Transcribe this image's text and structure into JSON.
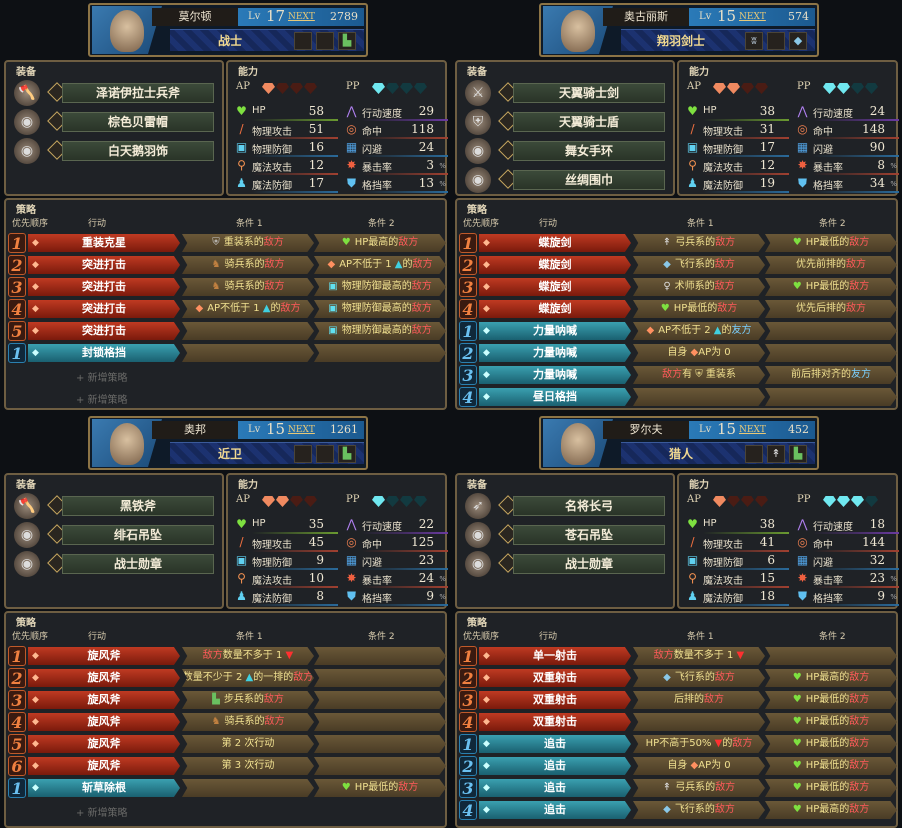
{
  "labels": {
    "equip": "装备",
    "ability": "能力",
    "strategy": "策略",
    "priority": "优先顺序",
    "action": "行动",
    "cond1": "条件 1",
    "cond2": "条件 2",
    "ap": "AP",
    "pp": "PP",
    "lv": "Lv",
    "next": "NEXT",
    "pct": "%"
  },
  "stat_labels": [
    "HP",
    "物理攻击",
    "物理防御",
    "魔法攻击",
    "魔法防御",
    "行动速度",
    "命中",
    "闪避",
    "暴击率",
    "格挡率"
  ],
  "stat_icons": [
    "heart-icon",
    "sword-icon",
    "armor-icon",
    "staff-icon",
    "cloak-icon",
    "speed-icon",
    "target-icon",
    "evade-icon",
    "crit-icon",
    "shield-icon"
  ],
  "colors": {
    "active": "#a82a18",
    "passive": "#2a8a9a",
    "enemy": "#ff5a5a",
    "ally": "#7ad0ff",
    "frame": "#6e5e42"
  },
  "units": [
    {
      "name": "莫尔顿",
      "lv": "17",
      "next": "2789",
      "cls": "战士",
      "class_icons": [
        "",
        "",
        "infantry"
      ],
      "ap_max": 4,
      "ap": 1,
      "pp_max": 4,
      "pp": 1,
      "equip": [
        {
          "name": "泽诺伊拉士兵斧",
          "type": "axe"
        },
        {
          "name": "棕色贝雷帽",
          "type": "accessory"
        },
        {
          "name": "白天鹅羽饰",
          "type": "accessory"
        }
      ],
      "stats": [
        "58",
        "51",
        "16",
        "12",
        "17",
        "29",
        "118",
        "24",
        "3",
        "13"
      ],
      "strategies": [
        {
          "rank": "1",
          "kind": "active",
          "action": "重装克星",
          "c1": {
            "icon": "armor",
            "text": "重装系的敌方"
          },
          "c2": {
            "icon": "hp",
            "text": "HP最高的敌方"
          }
        },
        {
          "rank": "2",
          "kind": "active",
          "action": "突进打击",
          "c1": {
            "icon": "cavalry",
            "text": "骑兵系的敌方"
          },
          "c2": {
            "icon": "ap",
            "text": "AP不低于 1 ▲的敌方"
          }
        },
        {
          "rank": "3",
          "kind": "active",
          "action": "突进打击",
          "c1": {
            "icon": "cavalry",
            "text": "骑兵系的敌方"
          },
          "c2": {
            "icon": "pdef",
            "text": "物理防御最高的敌方"
          }
        },
        {
          "rank": "4",
          "kind": "active",
          "action": "突进打击",
          "c1": {
            "icon": "ap",
            "text": "AP不低于 1 ▲的敌方"
          },
          "c2": {
            "icon": "pdef",
            "text": "物理防御最高的敌方"
          }
        },
        {
          "rank": "5",
          "kind": "active",
          "action": "突进打击",
          "c1": {
            "icon": "",
            "text": ""
          },
          "c2": {
            "icon": "pdef",
            "text": "物理防御最高的敌方"
          }
        },
        {
          "rank": "1",
          "kind": "passive",
          "action": "封锁格挡",
          "c1": {
            "icon": "",
            "text": ""
          },
          "c2": {
            "icon": "",
            "text": ""
          }
        }
      ],
      "add": [
        "+ 新增策略",
        "+ 新增策略"
      ]
    },
    {
      "name": "奥古丽斯",
      "lv": "15",
      "next": "574",
      "cls": "翔羽剑士",
      "class_icons": [
        "wings",
        "",
        "flying"
      ],
      "ap_max": 4,
      "ap": 2,
      "pp_max": 4,
      "pp": 2,
      "equip": [
        {
          "name": "天翼骑士剑",
          "type": "sword"
        },
        {
          "name": "天翼骑士盾",
          "type": "shield"
        },
        {
          "name": "舞女手环",
          "type": "accessory"
        },
        {
          "name": "丝绸围巾",
          "type": "accessory"
        }
      ],
      "stats": [
        "38",
        "31",
        "17",
        "12",
        "19",
        "24",
        "148",
        "90",
        "8",
        "34"
      ],
      "strategies": [
        {
          "rank": "1",
          "kind": "active",
          "action": "蝶旋剑",
          "c1": {
            "icon": "archer",
            "text": "弓兵系的敌方"
          },
          "c2": {
            "icon": "hp",
            "text": "HP最低的敌方"
          }
        },
        {
          "rank": "2",
          "kind": "active",
          "action": "蝶旋剑",
          "c1": {
            "icon": "flying",
            "text": "飞行系的敌方"
          },
          "c2": {
            "icon": "",
            "text": "优先前排的敌方"
          }
        },
        {
          "rank": "3",
          "kind": "active",
          "action": "蝶旋剑",
          "c1": {
            "icon": "mage",
            "text": "术师系的敌方"
          },
          "c2": {
            "icon": "hp",
            "text": "HP最低的敌方"
          }
        },
        {
          "rank": "4",
          "kind": "active",
          "action": "蝶旋剑",
          "c1": {
            "icon": "hp",
            "text": "HP最低的敌方"
          },
          "c2": {
            "icon": "",
            "text": "优先后排的敌方"
          }
        },
        {
          "rank": "1",
          "kind": "passive",
          "action": "力量呐喊",
          "c1": {
            "icon": "ap",
            "text": "AP不低于 2 ▲的友方"
          },
          "c2": {
            "icon": "",
            "text": ""
          }
        },
        {
          "rank": "2",
          "kind": "passive",
          "action": "力量呐喊",
          "c1": {
            "icon": "",
            "text": "自身 ◆AP为 0"
          },
          "c2": {
            "icon": "",
            "text": ""
          }
        },
        {
          "rank": "3",
          "kind": "passive",
          "action": "力量呐喊",
          "c1": {
            "icon": "",
            "text": "敌方有 ⛨ 重装系"
          },
          "c2": {
            "icon": "",
            "text": "前后排对齐的友方"
          }
        },
        {
          "rank": "4",
          "kind": "passive",
          "action": "昼日格挡",
          "c1": {
            "icon": "",
            "text": ""
          },
          "c2": {
            "icon": "",
            "text": ""
          }
        }
      ],
      "add": []
    },
    {
      "name": "奥邦",
      "lv": "15",
      "next": "1261",
      "cls": "近卫",
      "class_icons": [
        "",
        "",
        "infantry"
      ],
      "ap_max": 4,
      "ap": 2,
      "pp_max": 4,
      "pp": 1,
      "equip": [
        {
          "name": "黑铁斧",
          "type": "axe"
        },
        {
          "name": "绯石吊坠",
          "type": "accessory"
        },
        {
          "name": "战士勋章",
          "type": "accessory"
        }
      ],
      "stats": [
        "35",
        "45",
        "9",
        "10",
        "8",
        "22",
        "125",
        "23",
        "24",
        "9"
      ],
      "strategies": [
        {
          "rank": "1",
          "kind": "active",
          "action": "旋风斧",
          "c1": {
            "icon": "",
            "text": "敌方数量不多于 1 ▼"
          },
          "c2": {
            "icon": "",
            "text": ""
          }
        },
        {
          "rank": "2",
          "kind": "active",
          "action": "旋风斧",
          "c1": {
            "icon": "",
            "text": "数量不少于 2 ▲的一排的敌方"
          },
          "c2": {
            "icon": "",
            "text": ""
          }
        },
        {
          "rank": "3",
          "kind": "active",
          "action": "旋风斧",
          "c1": {
            "icon": "infantry",
            "text": "步兵系的敌方"
          },
          "c2": {
            "icon": "",
            "text": ""
          }
        },
        {
          "rank": "4",
          "kind": "active",
          "action": "旋风斧",
          "c1": {
            "icon": "cavalry",
            "text": "骑兵系的敌方"
          },
          "c2": {
            "icon": "",
            "text": ""
          }
        },
        {
          "rank": "5",
          "kind": "active",
          "action": "旋风斧",
          "c1": {
            "icon": "",
            "text": "第 2 次行动"
          },
          "c2": {
            "icon": "",
            "text": ""
          }
        },
        {
          "rank": "6",
          "kind": "active",
          "action": "旋风斧",
          "c1": {
            "icon": "",
            "text": "第 3 次行动"
          },
          "c2": {
            "icon": "",
            "text": ""
          }
        },
        {
          "rank": "1",
          "kind": "passive",
          "action": "斩草除根",
          "c1": {
            "icon": "",
            "text": ""
          },
          "c2": {
            "icon": "hp",
            "text": "HP最低的敌方"
          }
        }
      ],
      "add": [
        "+ 新增策略"
      ]
    },
    {
      "name": "罗尔夫",
      "lv": "15",
      "next": "452",
      "cls": "猎人",
      "class_icons": [
        "",
        "archer",
        "infantry"
      ],
      "ap_max": 4,
      "ap": 1,
      "pp_max": 4,
      "pp": 3,
      "equip": [
        {
          "name": "名将长弓",
          "type": "bow"
        },
        {
          "name": "苍石吊坠",
          "type": "accessory"
        },
        {
          "name": "战士勋章",
          "type": "accessory"
        }
      ],
      "stats": [
        "38",
        "41",
        "6",
        "15",
        "18",
        "18",
        "144",
        "32",
        "23",
        "9"
      ],
      "strategies": [
        {
          "rank": "1",
          "kind": "active",
          "action": "单一射击",
          "c1": {
            "icon": "",
            "text": "敌方数量不多于 1 ▼"
          },
          "c2": {
            "icon": "",
            "text": ""
          }
        },
        {
          "rank": "2",
          "kind": "active",
          "action": "双重射击",
          "c1": {
            "icon": "flying",
            "text": "飞行系的敌方"
          },
          "c2": {
            "icon": "hp",
            "text": "HP最高的敌方"
          }
        },
        {
          "rank": "3",
          "kind": "active",
          "action": "双重射击",
          "c1": {
            "icon": "",
            "text": "后排的敌方"
          },
          "c2": {
            "icon": "hp",
            "text": "HP最低的敌方"
          }
        },
        {
          "rank": "4",
          "kind": "active",
          "action": "双重射击",
          "c1": {
            "icon": "",
            "text": ""
          },
          "c2": {
            "icon": "hp",
            "text": "HP最低的敌方"
          }
        },
        {
          "rank": "1",
          "kind": "passive",
          "action": "追击",
          "c1": {
            "icon": "",
            "text": "HP不高于50% ▼的敌方"
          },
          "c2": {
            "icon": "hp",
            "text": "HP最低的敌方"
          }
        },
        {
          "rank": "2",
          "kind": "passive",
          "action": "追击",
          "c1": {
            "icon": "",
            "text": "自身 ◆AP为 0"
          },
          "c2": {
            "icon": "hp",
            "text": "HP最低的敌方"
          }
        },
        {
          "rank": "3",
          "kind": "passive",
          "action": "追击",
          "c1": {
            "icon": "archer",
            "text": "弓兵系的敌方"
          },
          "c2": {
            "icon": "hp",
            "text": "HP最低的敌方"
          }
        },
        {
          "rank": "4",
          "kind": "passive",
          "action": "追击",
          "c1": {
            "icon": "flying",
            "text": "飞行系的敌方"
          },
          "c2": {
            "icon": "hp",
            "text": "HP最高的敌方"
          }
        }
      ],
      "add": []
    }
  ]
}
